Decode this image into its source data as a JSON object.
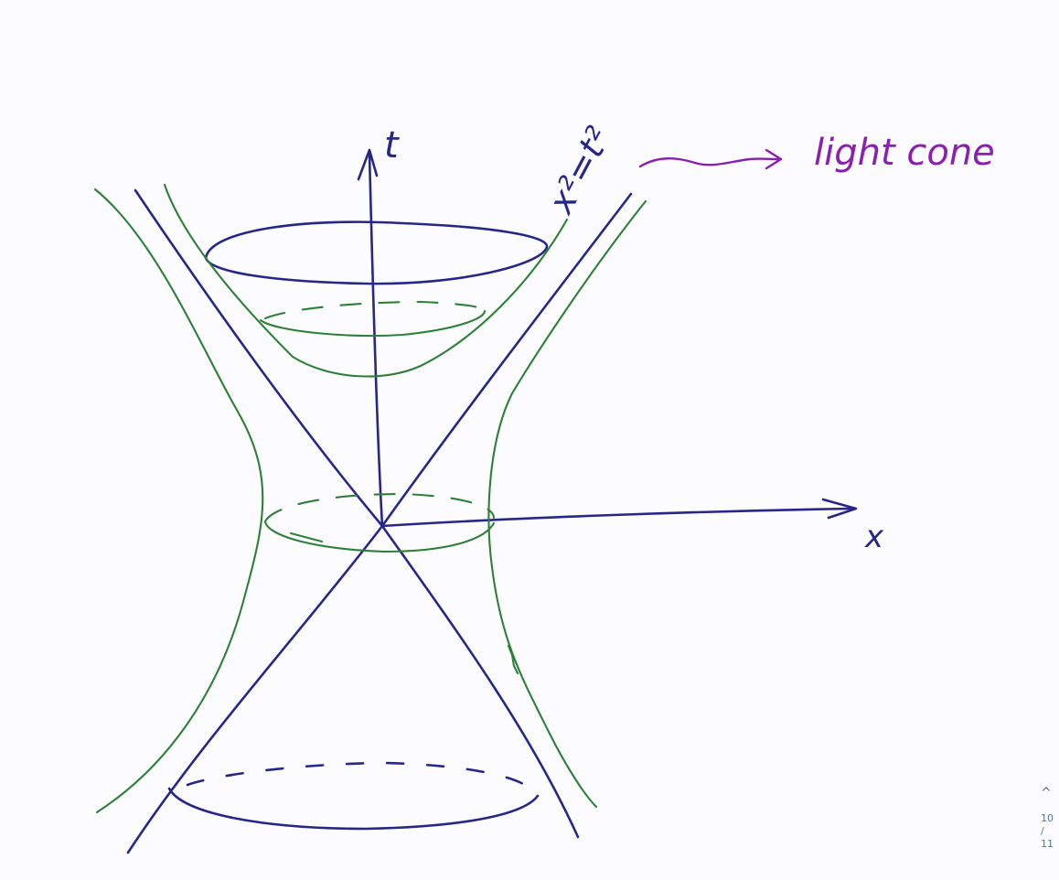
{
  "labels": {
    "t_axis": "t",
    "x_axis": "x",
    "cone_equation": "x²=t²",
    "cone_note": "light cone"
  },
  "pager": {
    "chevron_icon": "chevron-up-icon",
    "current_page": "10",
    "separator": "/",
    "total_pages": "11"
  },
  "colors": {
    "cone_ink": "#27278a",
    "hyperboloid_ink": "#2e7f3a",
    "annotation_ink": "#8a1fb0"
  }
}
